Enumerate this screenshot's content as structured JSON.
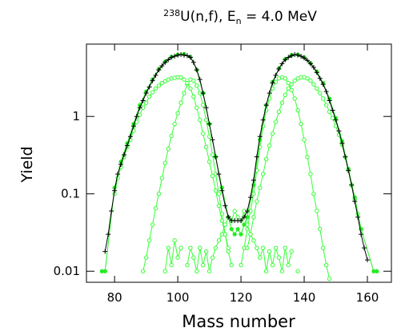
{
  "chart_data": {
    "type": "line",
    "title": {
      "sup": "238",
      "main": "U(n,f), E",
      "sub": "n",
      "rest": " = 4.0 MeV"
    },
    "xlabel": "Mass number",
    "ylabel": "Yield",
    "xlim": [
      71.1,
      167.6
    ],
    "ylim": [
      0.0072,
      8.6
    ],
    "log_y": true,
    "xticks": [
      80,
      100,
      120,
      140,
      160
    ],
    "yticks": [
      0.01,
      0.1,
      1
    ],
    "series": [
      {
        "color": "#33ff33",
        "marker": "open-circle",
        "x": [
          89,
          90,
          91,
          92,
          93,
          94,
          95,
          96,
          97,
          98,
          99,
          100,
          101,
          102,
          103,
          104,
          105,
          106,
          107,
          108,
          109,
          110,
          111,
          112,
          113,
          114,
          115,
          116,
          117
        ],
        "values": [
          0.01,
          0.015,
          0.025,
          0.04,
          0.065,
          0.1,
          0.16,
          0.25,
          0.38,
          0.56,
          0.8,
          1.1,
          1.5,
          2.0,
          2.6,
          3.0,
          2.9,
          2.5,
          2.0,
          1.4,
          0.9,
          0.55,
          0.32,
          0.18,
          0.1,
          0.055,
          0.03,
          0.018,
          0.012
        ]
      },
      {
        "color": "#33ff33",
        "marker": "open-circle",
        "x": [
          80,
          81,
          82,
          83,
          84,
          85,
          86,
          87,
          88,
          89,
          90,
          91,
          92,
          93,
          94,
          95,
          96,
          97,
          98,
          99,
          100,
          101,
          102,
          103,
          104,
          105,
          106,
          107,
          108,
          109,
          110,
          111,
          112,
          113,
          114,
          115,
          116
        ],
        "values": [
          0.1,
          0.16,
          0.22,
          0.3,
          0.4,
          0.5,
          0.65,
          0.85,
          1.05,
          1.3,
          1.5,
          1.8,
          2.05,
          2.3,
          2.5,
          2.7,
          2.85,
          3.0,
          3.1,
          3.15,
          3.2,
          3.2,
          3.0,
          2.7,
          2.3,
          1.8,
          1.3,
          0.9,
          0.6,
          0.4,
          0.26,
          0.17,
          0.11,
          0.07,
          0.045,
          0.03,
          0.02
        ]
      },
      {
        "color": "#33ff33",
        "marker": "open-circle",
        "x": [
          120,
          121,
          122,
          123,
          124,
          125,
          126,
          127,
          128,
          129,
          130,
          131,
          132,
          133,
          134,
          135,
          136,
          137,
          138,
          139,
          140,
          141,
          142,
          143,
          144,
          145,
          146,
          147,
          148
        ],
        "values": [
          0.012,
          0.02,
          0.035,
          0.06,
          0.1,
          0.2,
          0.4,
          0.75,
          1.2,
          1.7,
          2.3,
          2.8,
          3.1,
          3.2,
          3.1,
          2.7,
          2.2,
          1.7,
          1.2,
          0.8,
          0.5,
          0.3,
          0.18,
          0.1,
          0.06,
          0.035,
          0.02,
          0.012,
          0.008
        ]
      },
      {
        "color": "#33ff33",
        "marker": "open-circle",
        "x": [
          122,
          123,
          124,
          125,
          126,
          127,
          128,
          129,
          130,
          131,
          132,
          133,
          134,
          135,
          136,
          137,
          138,
          139,
          140,
          141,
          142,
          143,
          144,
          145,
          146,
          147,
          148,
          149,
          150,
          151,
          152,
          153,
          154,
          155,
          156,
          157,
          158
        ],
        "values": [
          0.02,
          0.03,
          0.05,
          0.08,
          0.12,
          0.18,
          0.28,
          0.42,
          0.6,
          0.85,
          1.15,
          1.5,
          1.9,
          2.3,
          2.6,
          2.9,
          3.1,
          3.2,
          3.2,
          3.1,
          2.9,
          2.6,
          2.3,
          2.0,
          1.7,
          1.4,
          1.15,
          0.95,
          0.75,
          0.58,
          0.43,
          0.3,
          0.2,
          0.13,
          0.085,
          0.055,
          0.035
        ]
      },
      {
        "color": "#33ff33",
        "marker": "open-circle",
        "x": [
          96,
          97,
          98,
          99,
          100,
          101,
          102,
          103,
          104,
          105,
          106,
          107,
          108,
          109,
          110,
          111,
          112,
          113,
          114,
          115,
          116,
          117,
          118,
          119,
          120,
          121,
          122,
          123,
          124,
          125,
          126,
          127,
          128,
          129,
          130,
          131,
          132,
          133,
          134,
          135,
          136,
          137,
          138
        ],
        "values": [
          0.01,
          0.02,
          0.012,
          0.025,
          0.015,
          0.02,
          null,
          0.012,
          0.02,
          0.015,
          0.01,
          0.02,
          0.012,
          0.018,
          0.01,
          0.015,
          0.02,
          0.025,
          0.03,
          0.04,
          0.05,
          0.045,
          0.06,
          0.05,
          0.045,
          0.06,
          0.04,
          0.03,
          0.025,
          0.02,
          0.015,
          0.02,
          0.01,
          0.018,
          0.012,
          0.02,
          0.015,
          0.01,
          0.02,
          0.012,
          0.018,
          null,
          0.01
        ]
      },
      {
        "color": "#22ee22",
        "marker": "filled-circle",
        "x": [
          76,
          77,
          80,
          82,
          84,
          86,
          88,
          90,
          92,
          94,
          96,
          98,
          100,
          102,
          104,
          106,
          108,
          110,
          112,
          114,
          116,
          117,
          118,
          119,
          120,
          121,
          122,
          124,
          126,
          128,
          130,
          132,
          134,
          136,
          138,
          140,
          142,
          144,
          146,
          148,
          150,
          152,
          154,
          156,
          158,
          162,
          163
        ],
        "values": [
          0.01,
          0.01,
          0.12,
          0.26,
          0.45,
          0.8,
          1.4,
          2.1,
          3.0,
          4.1,
          5.1,
          5.9,
          6.3,
          6.4,
          5.9,
          4.0,
          2.0,
          0.8,
          0.3,
          0.12,
          0.05,
          0.035,
          0.03,
          0.035,
          0.03,
          0.04,
          0.05,
          0.13,
          0.5,
          1.4,
          2.8,
          4.2,
          5.5,
          6.2,
          6.3,
          5.8,
          4.9,
          3.8,
          2.7,
          1.7,
          0.95,
          0.48,
          0.21,
          0.09,
          0.035,
          0.01,
          0.01
        ]
      },
      {
        "color": "#000000",
        "marker": "plus",
        "x": [
          77,
          78,
          79,
          80,
          81,
          82,
          83,
          84,
          85,
          86,
          87,
          88,
          89,
          90,
          91,
          92,
          93,
          94,
          95,
          96,
          97,
          98,
          99,
          100,
          101,
          102,
          103,
          104,
          105,
          106,
          107,
          108,
          109,
          110,
          111,
          112,
          113,
          114,
          115,
          116,
          117,
          118,
          119,
          120,
          121,
          122,
          123,
          124,
          125,
          126,
          127,
          128,
          129,
          130,
          131,
          132,
          133,
          134,
          135,
          136,
          137,
          138,
          139,
          140,
          141,
          142,
          143,
          144,
          145,
          146,
          147,
          148,
          149,
          150,
          151,
          152,
          153,
          154,
          155,
          156,
          157,
          158,
          159,
          160
        ],
        "values": [
          0.018,
          0.03,
          0.06,
          0.11,
          0.18,
          0.24,
          0.32,
          0.42,
          0.55,
          0.75,
          1.0,
          1.3,
          1.6,
          2.0,
          2.4,
          2.9,
          3.4,
          4.0,
          4.5,
          5.0,
          5.4,
          5.8,
          6.0,
          6.2,
          6.3,
          6.2,
          6.1,
          5.8,
          5.0,
          4.0,
          3.0,
          2.0,
          1.3,
          0.8,
          0.5,
          0.3,
          0.18,
          0.11,
          0.07,
          0.05,
          0.045,
          0.045,
          0.045,
          0.045,
          0.05,
          0.06,
          0.09,
          0.15,
          0.3,
          0.55,
          0.9,
          1.4,
          2.0,
          2.7,
          3.4,
          4.1,
          4.8,
          5.4,
          5.8,
          6.1,
          6.3,
          6.2,
          6.0,
          5.7,
          5.3,
          4.8,
          4.3,
          3.7,
          3.1,
          2.6,
          2.1,
          1.6,
          1.2,
          0.9,
          0.65,
          0.45,
          0.3,
          0.2,
          0.13,
          0.08,
          0.05,
          0.03,
          0.02,
          0.014
        ]
      }
    ]
  }
}
